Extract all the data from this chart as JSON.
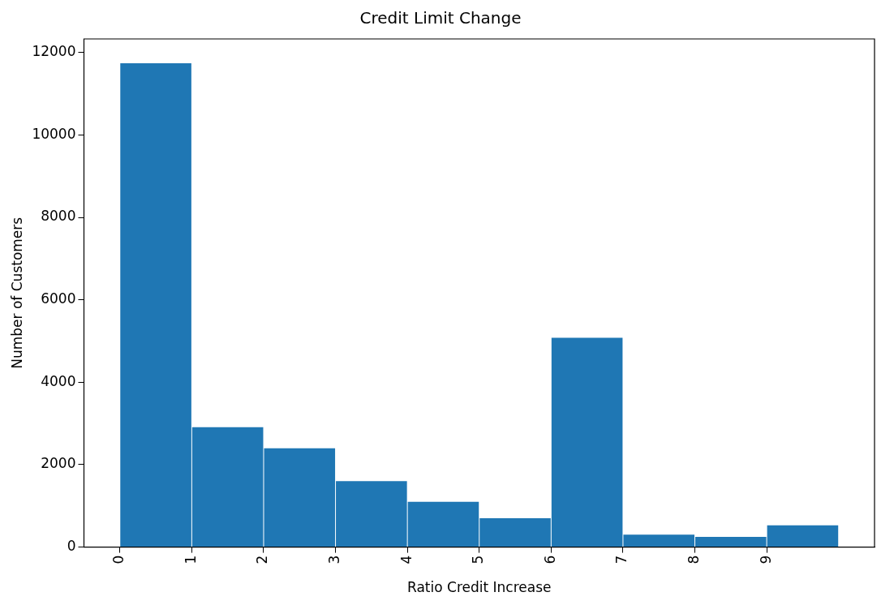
{
  "chart_data": {
    "type": "histogram",
    "title": "Credit Limit Change",
    "xlabel": "Ratio Credit Increase",
    "ylabel": "Number of Customers",
    "bins": [
      0,
      1,
      2,
      3,
      4,
      5,
      6,
      7,
      8,
      9,
      10
    ],
    "values": [
      11740,
      2910,
      2400,
      1600,
      1100,
      700,
      5080,
      300,
      250,
      530
    ],
    "color": "#1f77b4",
    "xlim": [
      -0.5,
      10.5
    ],
    "xticks": [
      0,
      1,
      2,
      3,
      4,
      5,
      6,
      7,
      8,
      9
    ],
    "ylim": [
      0,
      12330
    ],
    "yticks": [
      0,
      2000,
      4000,
      6000,
      8000,
      10000,
      12000
    ],
    "grid": false,
    "legend": false
  }
}
